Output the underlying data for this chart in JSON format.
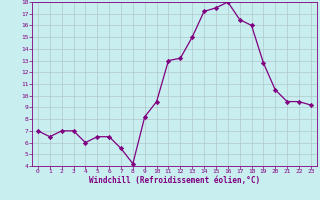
{
  "x": [
    0,
    1,
    2,
    3,
    4,
    5,
    6,
    7,
    8,
    9,
    10,
    11,
    12,
    13,
    14,
    15,
    16,
    17,
    18,
    19,
    20,
    21,
    22,
    23
  ],
  "y": [
    7.0,
    6.5,
    7.0,
    7.0,
    6.0,
    6.5,
    6.5,
    5.5,
    4.2,
    8.2,
    9.5,
    13.0,
    13.2,
    15.0,
    17.2,
    17.5,
    18.0,
    16.5,
    16.0,
    12.8,
    10.5,
    9.5,
    9.5,
    9.2
  ],
  "line_color": "#800080",
  "marker": "D",
  "marker_size": 2.2,
  "bg_color": "#c8eef0",
  "grid_color": "#b0c8cc",
  "xlabel": "Windchill (Refroidissement éolien,°C)",
  "xlabel_color": "#800080",
  "tick_color": "#800080",
  "ylim": [
    4,
    18
  ],
  "xlim": [
    -0.5,
    23.5
  ],
  "yticks": [
    4,
    5,
    6,
    7,
    8,
    9,
    10,
    11,
    12,
    13,
    14,
    15,
    16,
    17,
    18
  ],
  "xticks": [
    0,
    1,
    2,
    3,
    4,
    5,
    6,
    7,
    8,
    9,
    10,
    11,
    12,
    13,
    14,
    15,
    16,
    17,
    18,
    19,
    20,
    21,
    22,
    23
  ],
  "spine_color": "#800080",
  "font_family": "monospace",
  "linewidth": 0.9
}
